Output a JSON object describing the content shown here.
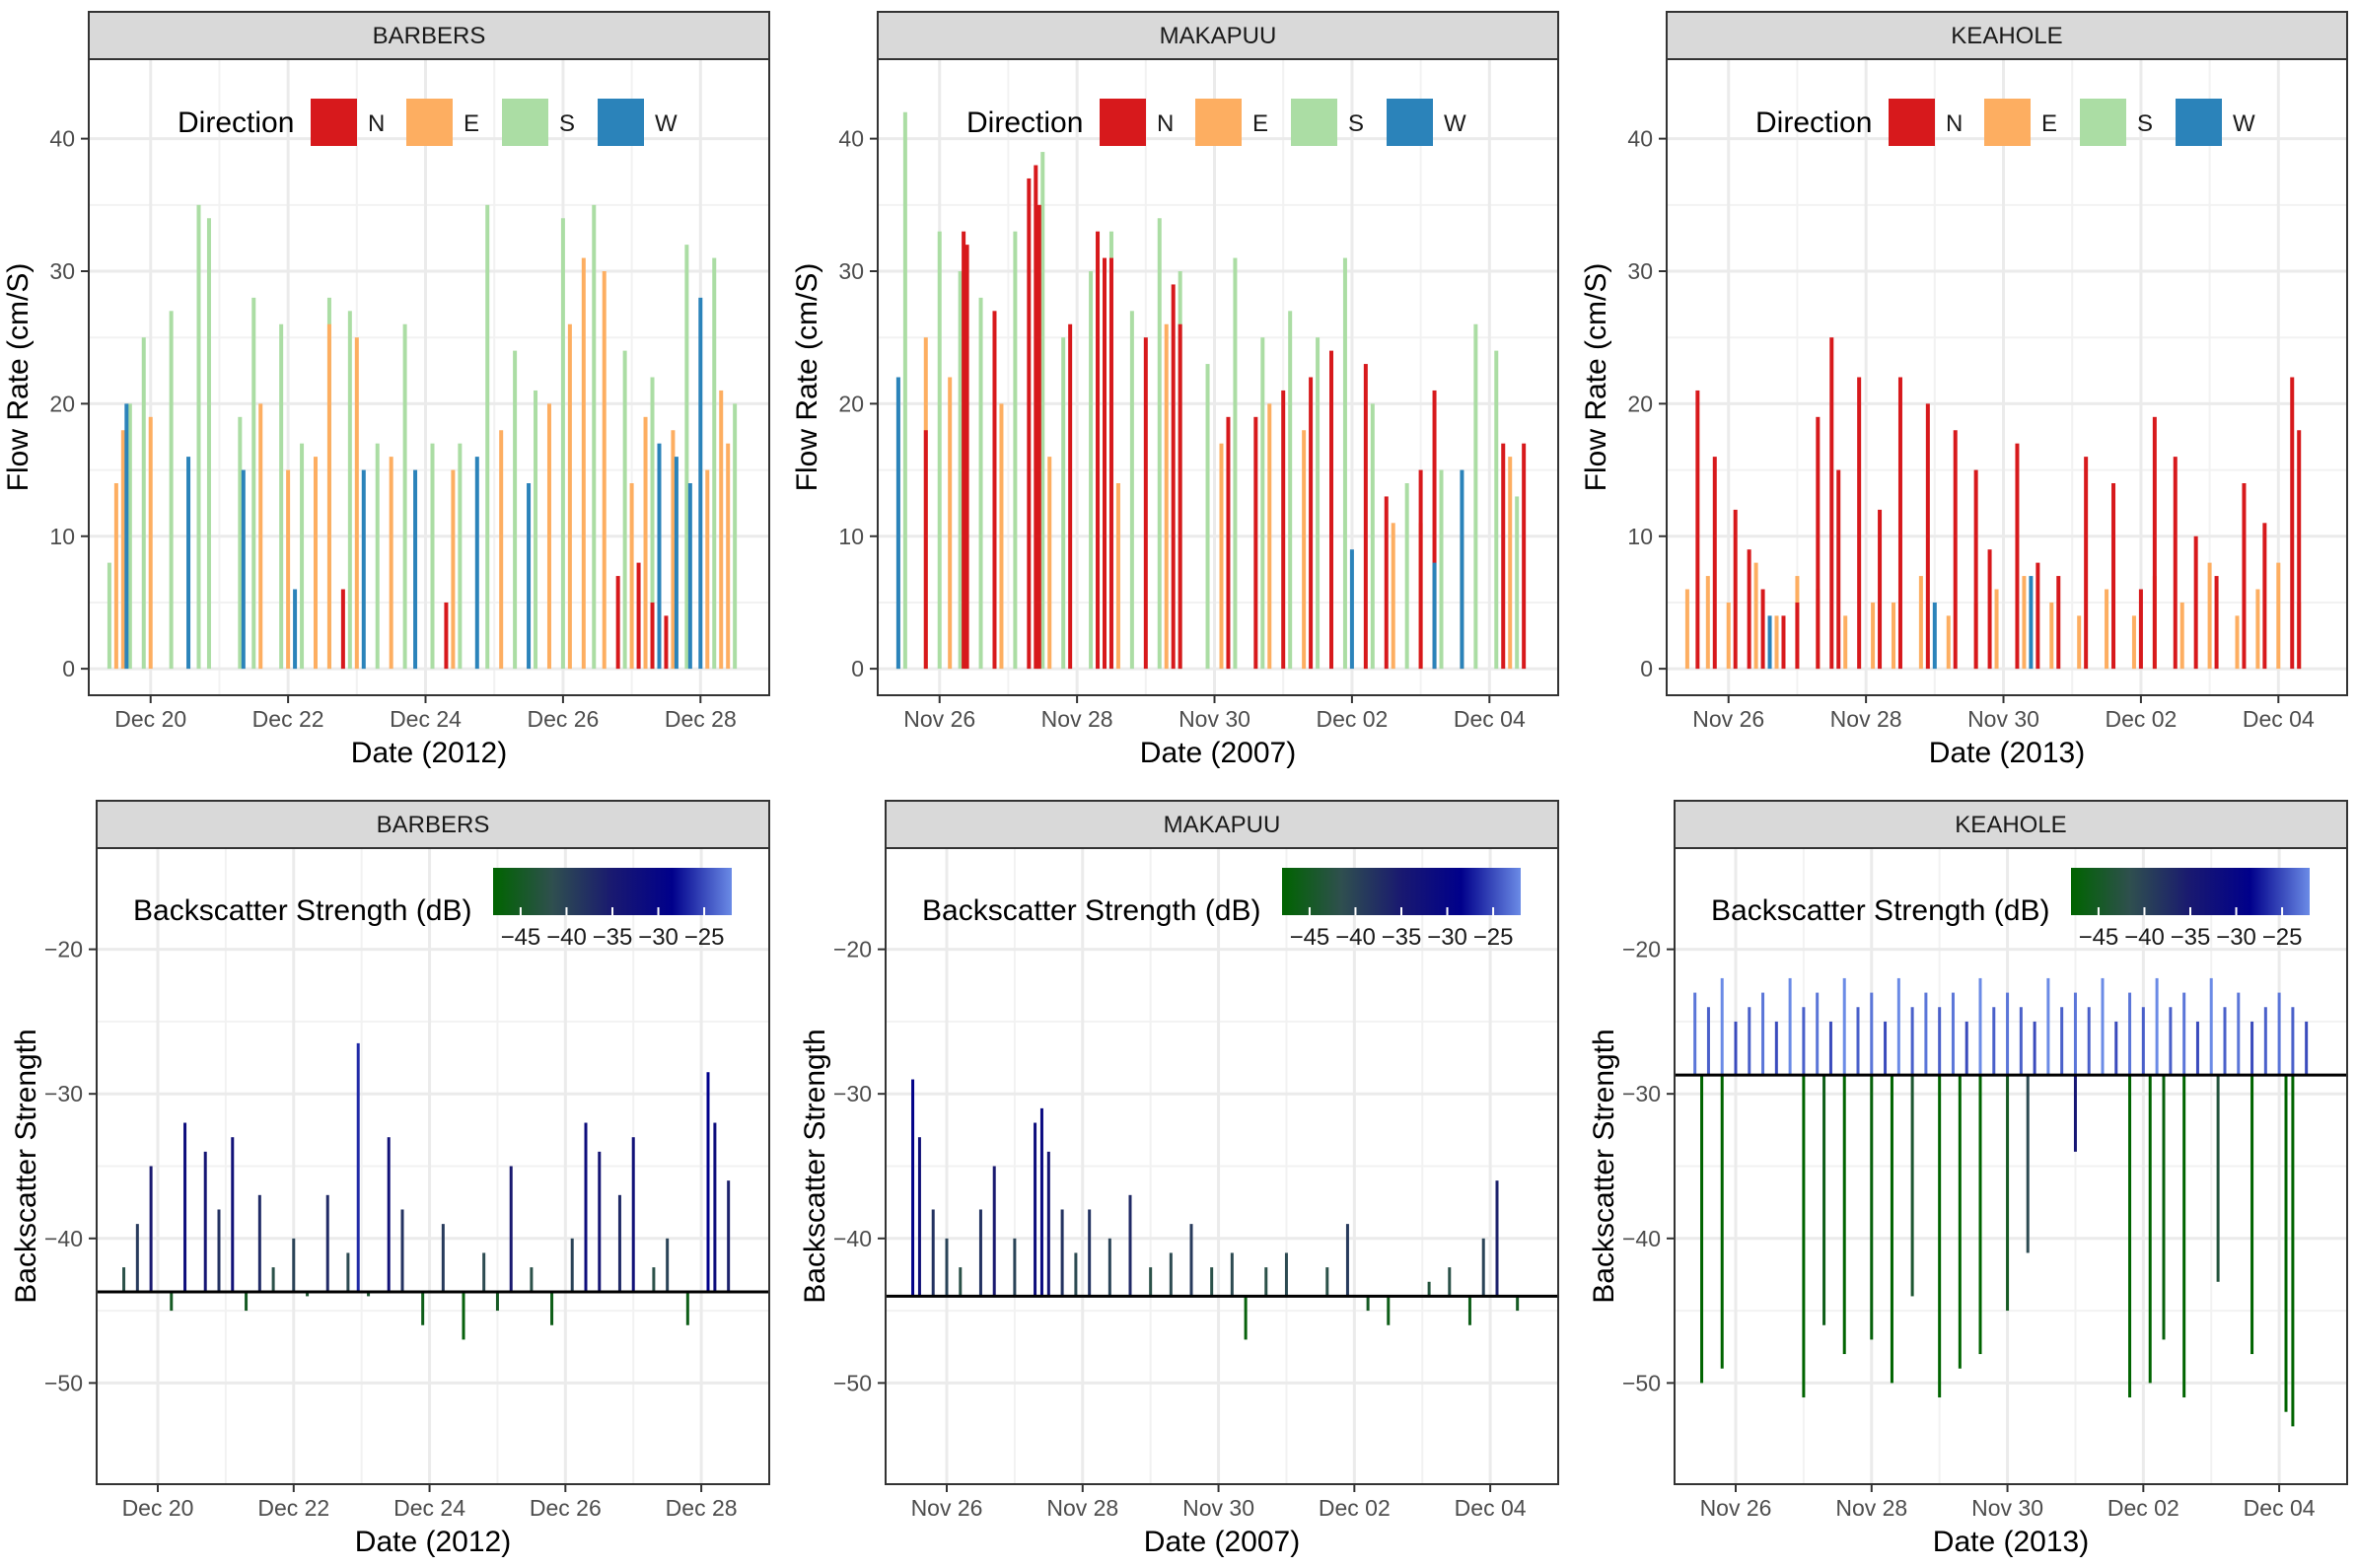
{
  "chart_data": [
    {
      "type": "bar",
      "panel": "flow",
      "strip": "BARBERS",
      "xlabel": "Date (2012)",
      "ylabel": "Flow Rate (cm/S)",
      "ylim": [
        -2,
        46
      ],
      "yticks": [
        0,
        10,
        20,
        30,
        40
      ],
      "xticks": [
        {
          "day": 0,
          "label": "Dec 20"
        },
        {
          "day": 2,
          "label": "Dec 22"
        },
        {
          "day": 4,
          "label": "Dec 24"
        },
        {
          "day": 6,
          "label": "Dec 26"
        },
        {
          "day": 8,
          "label": "Dec 28"
        }
      ],
      "xlim": [
        -0.9,
        9.0
      ],
      "series": [
        {
          "name": "S",
          "color": "#abdda4",
          "x": [
            -0.6,
            -0.3,
            -0.1,
            0.3,
            0.7,
            0.85,
            1.3,
            1.5,
            1.9,
            2.2,
            2.6,
            2.9,
            3.3,
            3.7,
            4.1,
            4.5,
            4.9,
            5.3,
            5.6,
            6.0,
            6.45,
            6.9,
            7.3,
            7.8,
            8.2,
            8.5
          ],
          "values": [
            8,
            20,
            25,
            27,
            35,
            34,
            19,
            28,
            26,
            17,
            28,
            27,
            17,
            26,
            17,
            17,
            35,
            24,
            21,
            34,
            35,
            24,
            22,
            32,
            31,
            20
          ]
        },
        {
          "name": "E",
          "color": "#fdae61",
          "x": [
            -0.5,
            -0.4,
            0.0,
            1.6,
            2.0,
            2.4,
            2.6,
            3.0,
            3.5,
            4.4,
            5.1,
            5.8,
            6.1,
            6.3,
            6.6,
            7.0,
            7.2,
            7.6,
            8.1,
            8.3,
            8.4
          ],
          "values": [
            14,
            18,
            19,
            20,
            15,
            16,
            26,
            25,
            16,
            15,
            18,
            20,
            26,
            31,
            30,
            14,
            19,
            18,
            15,
            21,
            17
          ]
        },
        {
          "name": "N",
          "color": "#d7191c",
          "x": [
            2.8,
            4.3,
            6.8,
            7.1,
            7.3,
            7.5
          ],
          "values": [
            6,
            5,
            7,
            8,
            5,
            4
          ]
        },
        {
          "name": "W",
          "color": "#2b83ba",
          "x": [
            -0.35,
            0.55,
            1.35,
            2.1,
            3.1,
            3.85,
            4.75,
            5.5,
            7.4,
            7.65,
            7.85,
            8.0
          ],
          "values": [
            20,
            16,
            15,
            6,
            15,
            15,
            16,
            14,
            17,
            16,
            14,
            28
          ]
        }
      ]
    },
    {
      "type": "bar",
      "panel": "flow",
      "strip": "MAKAPUU",
      "xlabel": "Date (2007)",
      "ylabel": "Flow Rate (cm/S)",
      "ylim": [
        -2,
        46
      ],
      "yticks": [
        0,
        10,
        20,
        30,
        40
      ],
      "xticks": [
        {
          "day": 0,
          "label": "Nov 26"
        },
        {
          "day": 2,
          "label": "Nov 28"
        },
        {
          "day": 4,
          "label": "Nov 30"
        },
        {
          "day": 6,
          "label": "Dec 02"
        },
        {
          "day": 8,
          "label": "Dec 04"
        }
      ],
      "xlim": [
        -0.9,
        9.0
      ],
      "series": [
        {
          "name": "S",
          "color": "#abdda4",
          "x": [
            -0.6,
            -0.5,
            0.0,
            0.3,
            0.6,
            1.1,
            1.5,
            1.8,
            2.2,
            2.5,
            2.8,
            3.2,
            3.5,
            3.9,
            4.3,
            4.7,
            5.1,
            5.5,
            5.9,
            6.3,
            6.8,
            7.3,
            7.8,
            8.1,
            8.4
          ],
          "values": [
            22,
            42,
            33,
            30,
            28,
            33,
            39,
            25,
            30,
            33,
            27,
            34,
            30,
            23,
            31,
            25,
            27,
            25,
            31,
            20,
            14,
            15,
            26,
            24,
            13
          ]
        },
        {
          "name": "E",
          "color": "#fdae61",
          "x": [
            -0.2,
            0.15,
            0.9,
            1.6,
            2.6,
            3.3,
            4.1,
            4.8,
            5.3,
            6.6,
            7.0,
            7.6,
            8.3
          ],
          "values": [
            25,
            22,
            20,
            16,
            14,
            26,
            17,
            20,
            18,
            11,
            11,
            10,
            16
          ]
        },
        {
          "name": "N",
          "color": "#d7191c",
          "x": [
            -0.2,
            0.35,
            0.4,
            0.8,
            1.3,
            1.4,
            1.45,
            1.9,
            2.3,
            2.4,
            2.5,
            3.0,
            3.4,
            3.5,
            4.2,
            4.6,
            5.0,
            5.4,
            5.7,
            6.2,
            6.5,
            7.0,
            7.2,
            8.2,
            8.5
          ],
          "values": [
            18,
            33,
            32,
            27,
            37,
            38,
            35,
            26,
            33,
            31,
            31,
            25,
            29,
            26,
            19,
            19,
            21,
            22,
            24,
            23,
            13,
            15,
            21,
            17,
            17
          ]
        },
        {
          "name": "W",
          "color": "#2b83ba",
          "x": [
            -0.6,
            6.0,
            7.2,
            7.6
          ],
          "values": [
            22,
            9,
            8,
            15
          ]
        }
      ]
    },
    {
      "type": "bar",
      "panel": "flow",
      "strip": "KEAHOLE",
      "xlabel": "Date (2013)",
      "ylabel": "Flow Rate (cm/S)",
      "ylim": [
        -2,
        46
      ],
      "yticks": [
        0,
        10,
        20,
        30,
        40
      ],
      "xticks": [
        {
          "day": 0,
          "label": "Nov 26"
        },
        {
          "day": 2,
          "label": "Nov 28"
        },
        {
          "day": 4,
          "label": "Nov 30"
        },
        {
          "day": 6,
          "label": "Dec 02"
        },
        {
          "day": 8,
          "label": "Dec 04"
        }
      ],
      "xlim": [
        -0.9,
        9.0
      ],
      "series": [
        {
          "name": "E",
          "color": "#fdae61",
          "x": [
            -0.6,
            -0.3,
            0.0,
            0.4,
            0.7,
            1.0,
            1.3,
            1.7,
            2.1,
            2.4,
            2.8,
            3.2,
            3.6,
            3.9,
            4.3,
            4.7,
            5.1,
            5.5,
            5.9,
            6.2,
            6.6,
            7.0,
            7.4,
            7.7,
            8.0,
            8.3
          ],
          "values": [
            6,
            7,
            5,
            8,
            4,
            7,
            6,
            4,
            5,
            5,
            7,
            4,
            5,
            6,
            7,
            5,
            4,
            6,
            4,
            7,
            5,
            8,
            4,
            6,
            8,
            5
          ]
        },
        {
          "name": "N",
          "color": "#d7191c",
          "x": [
            -0.45,
            -0.2,
            0.1,
            0.3,
            0.5,
            0.8,
            1.0,
            1.3,
            1.5,
            1.6,
            1.9,
            2.2,
            2.5,
            2.9,
            3.3,
            3.6,
            3.8,
            4.2,
            4.5,
            4.8,
            5.2,
            5.6,
            6.0,
            6.2,
            6.5,
            6.8,
            7.1,
            7.5,
            7.8,
            8.2,
            8.3
          ],
          "values": [
            21,
            16,
            12,
            9,
            6,
            4,
            5,
            19,
            25,
            15,
            22,
            12,
            22,
            20,
            18,
            15,
            9,
            17,
            8,
            7,
            16,
            14,
            6,
            19,
            16,
            10,
            7,
            14,
            11,
            22,
            18
          ]
        },
        {
          "name": "W",
          "color": "#2b83ba",
          "x": [
            0.6,
            3.0,
            4.4
          ],
          "values": [
            4,
            5,
            7
          ]
        }
      ]
    },
    {
      "type": "bar",
      "panel": "backscatter",
      "strip": "BARBERS",
      "xlabel": "Date (2012)",
      "ylabel": "Backscatter Strength",
      "baseline": -43.7,
      "ylim": [
        -57,
        -13
      ],
      "yticks": [
        -20,
        -30,
        -40,
        -50
      ],
      "xticks": [
        {
          "day": 0,
          "label": "Dec 20"
        },
        {
          "day": 2,
          "label": "Dec 22"
        },
        {
          "day": 4,
          "label": "Dec 24"
        },
        {
          "day": 6,
          "label": "Dec 26"
        },
        {
          "day": 8,
          "label": "Dec 28"
        }
      ],
      "xlim": [
        -0.9,
        9.0
      ],
      "x": [
        -0.5,
        -0.3,
        -0.1,
        0.2,
        0.4,
        0.7,
        0.9,
        1.1,
        1.3,
        1.5,
        1.7,
        2.0,
        2.2,
        2.5,
        2.8,
        2.95,
        3.1,
        3.4,
        3.6,
        3.9,
        4.2,
        4.5,
        4.8,
        5.0,
        5.2,
        5.5,
        5.8,
        6.1,
        6.3,
        6.5,
        6.8,
        7.0,
        7.3,
        7.5,
        7.8,
        8.1,
        8.2,
        8.4
      ],
      "values": [
        -42,
        -39,
        -35,
        -45,
        -32,
        -34,
        -38,
        -33,
        -45,
        -37,
        -42,
        -40,
        -44,
        -37,
        -41,
        -26.5,
        -44,
        -33,
        -38,
        -46,
        -39,
        -47,
        -41,
        -45,
        -35,
        -42,
        -46,
        -40,
        -32,
        -34,
        -37,
        -33,
        -42,
        -40,
        -46,
        -28.5,
        -32,
        -36
      ],
      "colorbar": {
        "title": "Backscatter Strength (dB)",
        "min": -48,
        "max": -22,
        "ticks": [
          -45,
          -40,
          -35,
          -30,
          -25
        ],
        "tick_labels": [
          "−45",
          "−40",
          "−35",
          "−30",
          "−25"
        ],
        "colors": [
          "#006400",
          "#2f4f4f",
          "#191970",
          "#00008b",
          "#6b8be6"
        ]
      }
    },
    {
      "type": "bar",
      "panel": "backscatter",
      "strip": "MAKAPUU",
      "xlabel": "Date (2007)",
      "ylabel": "Backscatter Strength",
      "baseline": -44.0,
      "ylim": [
        -57,
        -13
      ],
      "yticks": [
        -20,
        -30,
        -40,
        -50
      ],
      "xticks": [
        {
          "day": 0,
          "label": "Nov 26"
        },
        {
          "day": 2,
          "label": "Nov 28"
        },
        {
          "day": 4,
          "label": "Nov 30"
        },
        {
          "day": 6,
          "label": "Dec 02"
        },
        {
          "day": 8,
          "label": "Dec 04"
        }
      ],
      "xlim": [
        -0.9,
        9.0
      ],
      "x": [
        -0.5,
        -0.4,
        -0.2,
        0.0,
        0.2,
        0.5,
        0.7,
        1.0,
        1.3,
        1.4,
        1.5,
        1.7,
        1.9,
        2.1,
        2.4,
        2.7,
        3.0,
        3.3,
        3.6,
        3.9,
        4.2,
        4.4,
        4.7,
        5.0,
        5.3,
        5.6,
        5.9,
        6.2,
        6.5,
        6.8,
        7.1,
        7.4,
        7.7,
        7.9,
        8.1,
        8.4
      ],
      "values": [
        -29,
        -33,
        -38,
        -40,
        -42,
        -38,
        -35,
        -40,
        -32,
        -31,
        -34,
        -38,
        -41,
        -38,
        -40,
        -37,
        -42,
        -41,
        -39,
        -42,
        -41,
        -47,
        -42,
        -41,
        -44,
        -42,
        -39,
        -45,
        -46,
        -44,
        -43,
        -42,
        -46,
        -40,
        -36,
        -45
      ],
      "colorbar": {
        "title": "Backscatter Strength (dB)",
        "min": -48,
        "max": -22,
        "ticks": [
          -45,
          -40,
          -35,
          -30,
          -25
        ],
        "tick_labels": [
          "−45",
          "−40",
          "−35",
          "−30",
          "−25"
        ],
        "colors": [
          "#006400",
          "#2f4f4f",
          "#191970",
          "#00008b",
          "#6b8be6"
        ]
      }
    },
    {
      "type": "bar",
      "panel": "backscatter",
      "strip": "KEAHOLE",
      "xlabel": "Date (2013)",
      "ylabel": "Backscatter Strength",
      "baseline": -28.7,
      "ylim": [
        -57,
        -13
      ],
      "yticks": [
        -20,
        -30,
        -40,
        -50
      ],
      "xticks": [
        {
          "day": 0,
          "label": "Nov 26"
        },
        {
          "day": 2,
          "label": "Nov 28"
        },
        {
          "day": 4,
          "label": "Nov 30"
        },
        {
          "day": 6,
          "label": "Dec 02"
        },
        {
          "day": 8,
          "label": "Dec 04"
        }
      ],
      "xlim": [
        -0.9,
        9.0
      ],
      "x": [
        -0.6,
        -0.4,
        -0.2,
        0.0,
        0.2,
        0.4,
        0.6,
        0.8,
        1.0,
        1.2,
        1.4,
        1.6,
        1.8,
        2.0,
        2.2,
        2.4,
        2.6,
        2.8,
        3.0,
        3.2,
        3.4,
        3.6,
        3.8,
        4.0,
        4.2,
        4.4,
        4.6,
        4.8,
        5.0,
        5.2,
        5.4,
        5.6,
        5.8,
        6.0,
        6.2,
        6.4,
        6.6,
        6.8,
        7.0,
        7.2,
        7.4,
        7.6,
        7.8,
        8.0,
        8.2,
        8.4,
        -0.5,
        -0.2,
        1.0,
        1.3,
        1.6,
        2.0,
        2.3,
        2.6,
        3.0,
        3.3,
        3.6,
        4.0,
        4.3,
        5.0,
        5.8,
        6.1,
        6.3,
        6.6,
        7.1,
        7.6,
        8.1,
        8.2
      ],
      "values": [
        -23,
        -24,
        -22,
        -25,
        -24,
        -23,
        -25,
        -22,
        -24,
        -23,
        -25,
        -22,
        -24,
        -23,
        -25,
        -22,
        -24,
        -23,
        -24,
        -23,
        -25,
        -22,
        -24,
        -23,
        -24,
        -25,
        -22,
        -24,
        -23,
        -24,
        -22,
        -25,
        -23,
        -24,
        -22,
        -24,
        -23,
        -25,
        -22,
        -24,
        -23,
        -25,
        -24,
        -23,
        -24,
        -25,
        -50,
        -49,
        -51,
        -46,
        -48,
        -47,
        -50,
        -44,
        -51,
        -49,
        -48,
        -45,
        -41,
        -34,
        -51,
        -50,
        -47,
        -51,
        -43,
        -48,
        -52,
        -53
      ],
      "colorbar": {
        "title": "Backscatter Strength (dB)",
        "min": -48,
        "max": -22,
        "ticks": [
          -45,
          -40,
          -35,
          -30,
          -25
        ],
        "tick_labels": [
          "−45",
          "−40",
          "−35",
          "−30",
          "−25"
        ],
        "colors": [
          "#006400",
          "#2f4f4f",
          "#191970",
          "#00008b",
          "#6b8be6"
        ]
      }
    }
  ],
  "legend": {
    "title": "Direction",
    "items": [
      {
        "key": "N",
        "color": "#d7191c"
      },
      {
        "key": "E",
        "color": "#fdae61"
      },
      {
        "key": "S",
        "color": "#abdda4"
      },
      {
        "key": "W",
        "color": "#2b83ba"
      }
    ]
  }
}
